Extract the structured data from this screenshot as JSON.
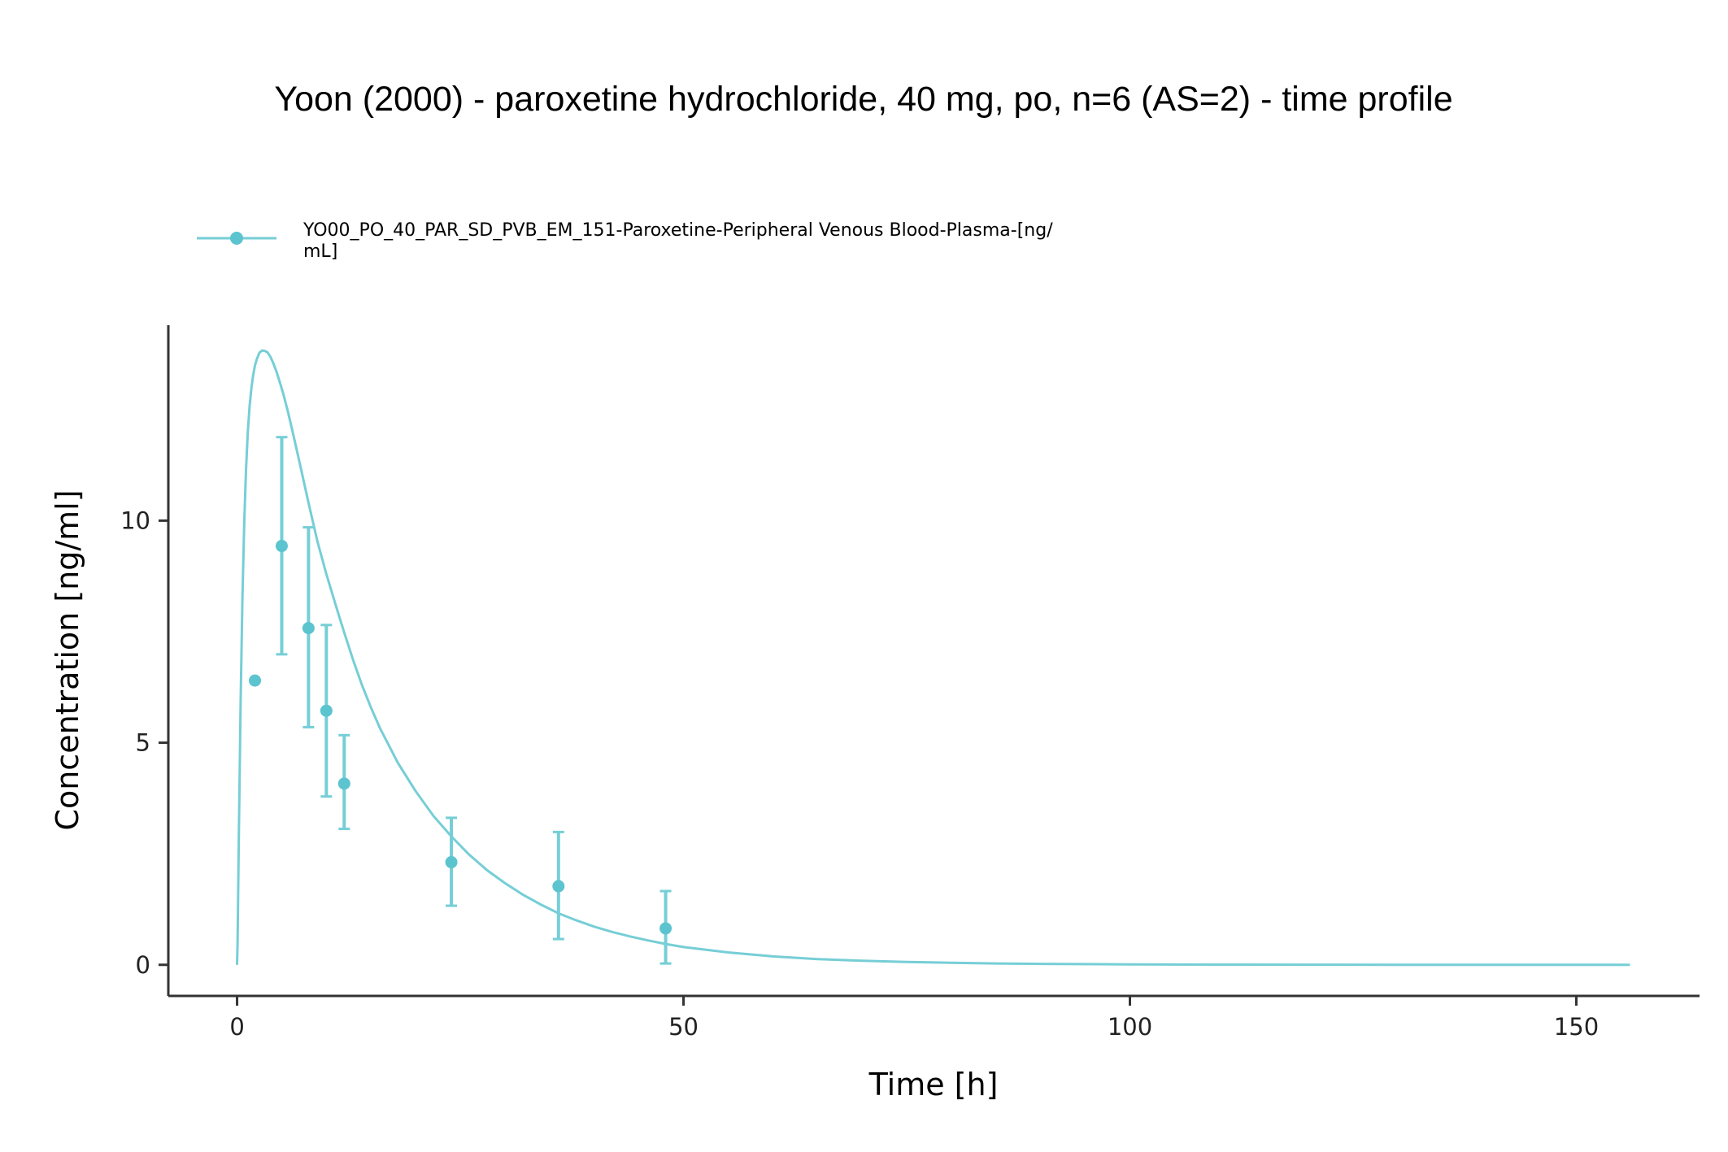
{
  "colors": {
    "series": "#76CED6",
    "point": "#5BC4CF",
    "axis": "#333333"
  },
  "chart_data": {
    "type": "line",
    "title": "Yoon (2000) - paroxetine hydrochloride, 40 mg, po, n=6 (AS=2) - time profile",
    "xlabel": "Time [h]",
    "ylabel": "Concentration [ng/ml]",
    "xlim": [
      -7.7,
      163.8
    ],
    "ylim": [
      -0.7,
      14.4
    ],
    "x_ticks": [
      0,
      50,
      100,
      150
    ],
    "y_ticks": [
      0,
      5,
      10
    ],
    "grid": false,
    "legend_position": "top-left",
    "legend": {
      "line1": "YO00_PO_40_PAR_SD_PVB_EM_151-Paroxetine-Peripheral Venous Blood-Plasma-[ng/",
      "line2": "mL]"
    },
    "simulation": {
      "name": "YO00_PO_40_PAR_SD_PVB_EM_151-Paroxetine-Peripheral Venous Blood-Plasma-[ng/mL]",
      "x": [
        0,
        0.05,
        0.2,
        0.4,
        0.6,
        0.8,
        1,
        1.2,
        1.4,
        1.6,
        1.8,
        2,
        2.2,
        2.5,
        2.8,
        3.1,
        3.4,
        3.7,
        4,
        4.4,
        4.8,
        5.2,
        5.7,
        6.2,
        7,
        8,
        9,
        10,
        11,
        12,
        13,
        14,
        15,
        16,
        18,
        20,
        22,
        24,
        26,
        28,
        30,
        32,
        34,
        36,
        38,
        40,
        42,
        44,
        46,
        48,
        50,
        55,
        60,
        65,
        70,
        75,
        80,
        85,
        90,
        95,
        100,
        110,
        120,
        130,
        140,
        150,
        156
      ],
      "y": [
        0,
        0.44,
        2.88,
        5.9,
        8.23,
        9.91,
        11.13,
        11.98,
        12.57,
        12.97,
        13.27,
        13.49,
        13.63,
        13.78,
        13.83,
        13.82,
        13.79,
        13.7,
        13.57,
        13.36,
        13.11,
        12.84,
        12.45,
        12.02,
        11.31,
        10.4,
        9.53,
        8.8,
        8.13,
        7.48,
        6.86,
        6.29,
        5.79,
        5.33,
        4.55,
        3.91,
        3.35,
        2.89,
        2.48,
        2.13,
        1.84,
        1.58,
        1.36,
        1.16,
        1.0,
        0.86,
        0.74,
        0.64,
        0.55,
        0.47,
        0.4,
        0.28,
        0.19,
        0.13,
        0.09,
        0.065,
        0.045,
        0.031,
        0.021,
        0.015,
        0.01,
        0.005,
        0.002,
        0.001,
        0.0005,
        0.0002,
        0.0001
      ]
    },
    "observed": {
      "x": [
        2,
        5,
        8,
        10,
        12,
        24,
        36,
        48
      ],
      "y": [
        6.4,
        9.43,
        7.58,
        5.72,
        4.08,
        2.31,
        1.77,
        0.82
      ],
      "error_low": [
        null,
        6.99,
        5.35,
        3.79,
        3.06,
        1.33,
        0.58,
        0.03
      ],
      "error_high": [
        null,
        11.88,
        9.85,
        7.65,
        5.17,
        3.31,
        2.99,
        1.66
      ]
    }
  }
}
